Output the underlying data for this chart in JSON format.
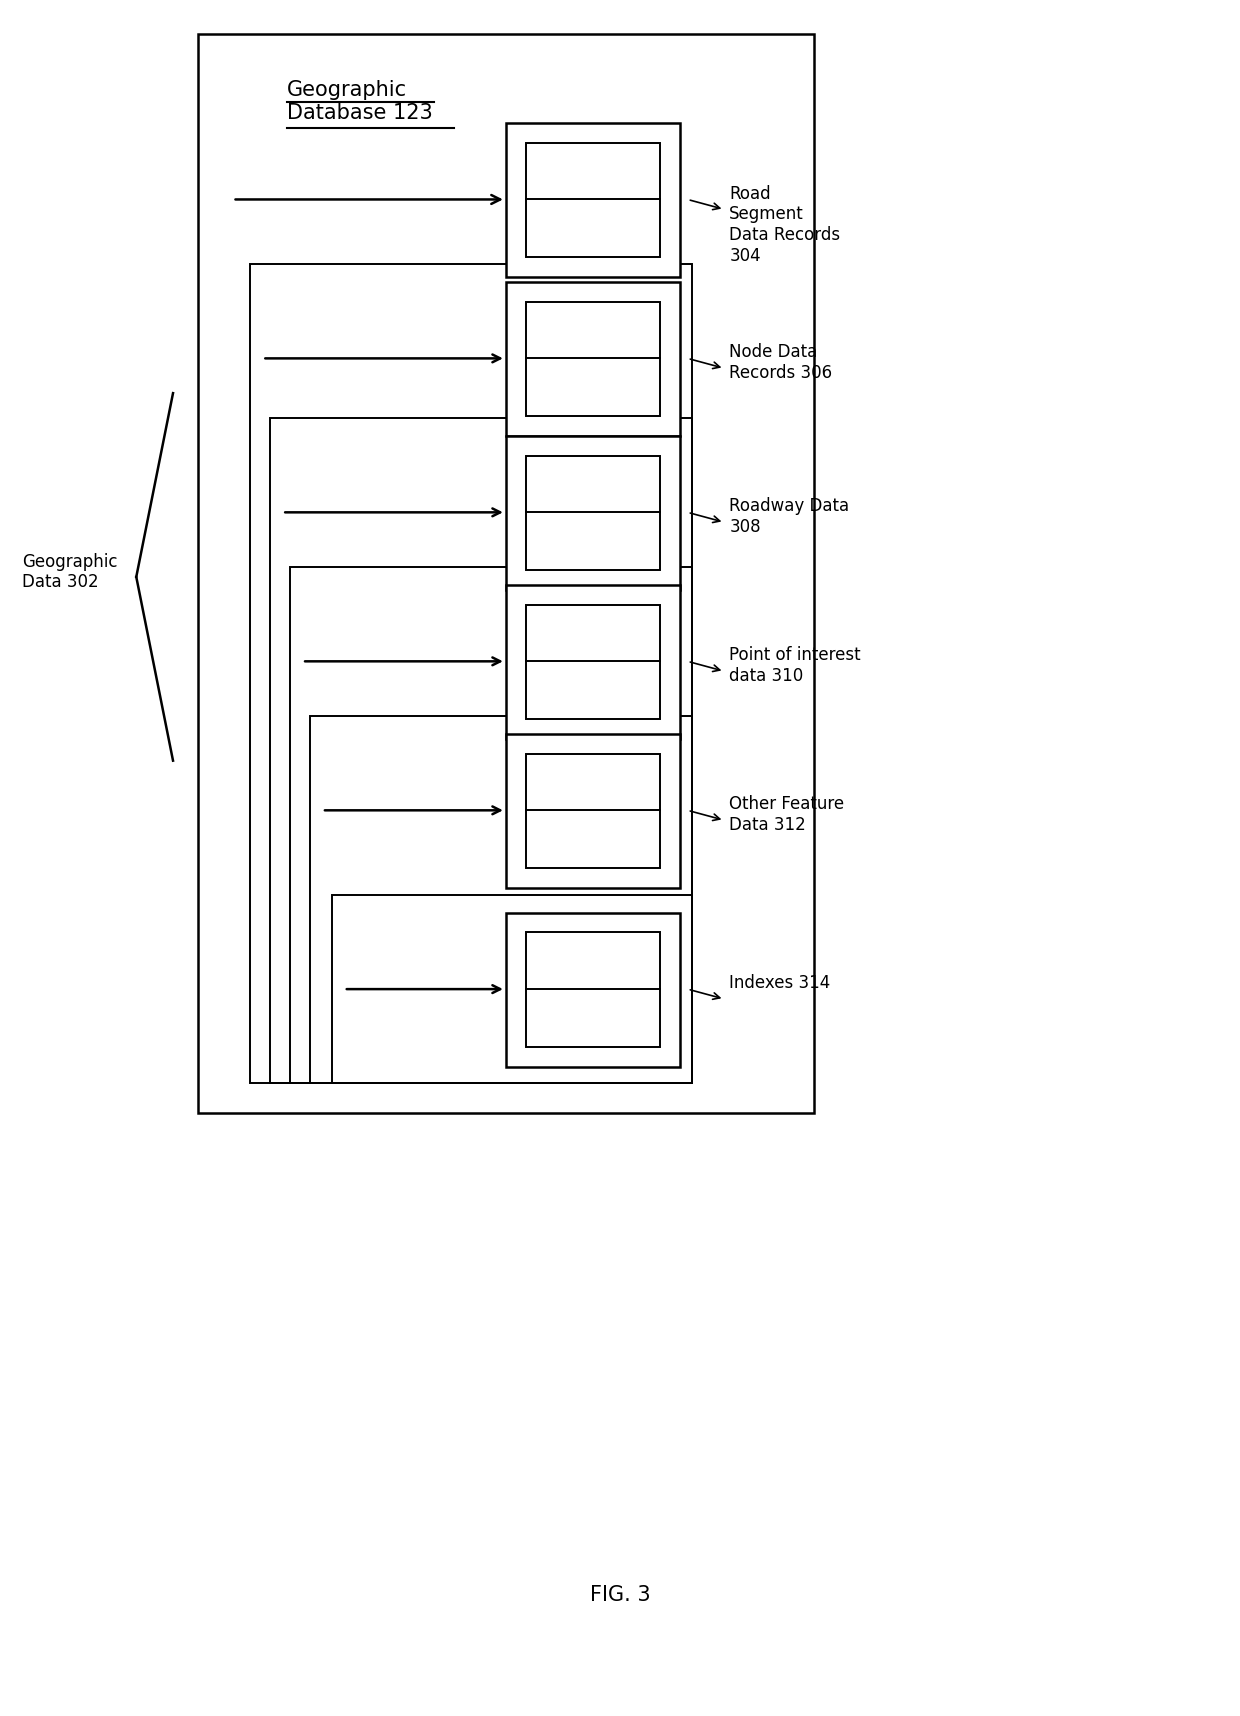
{
  "fig_width": 12.4,
  "fig_height": 17.16,
  "bg_color": "#ffffff",
  "fig_label": "FIG. 3",
  "title_text": "Geographic\nDatabase 123",
  "geo_data_label": "Geographic\nData 302",
  "records": [
    {
      "label": "Road\nSegment\nData Records\n304",
      "id": 1
    },
    {
      "label": "Node Data\nRecords 306",
      "id": 2
    },
    {
      "label": "Roadway Data\n308",
      "id": 3
    },
    {
      "label": "Point of interest\ndata 310",
      "id": 4
    },
    {
      "label": "Other Feature\nData 312",
      "id": 5
    },
    {
      "label": "Indexes 314",
      "id": 6
    }
  ],
  "fontsize_title": 15,
  "fontsize_labels": 12,
  "fontsize_fig": 15
}
